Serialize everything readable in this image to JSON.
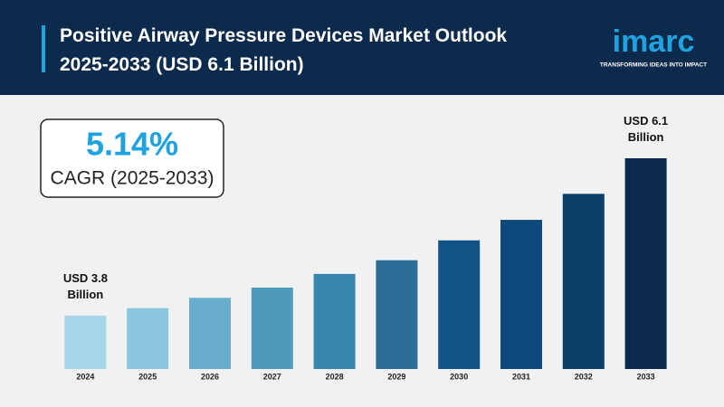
{
  "chart_data": {
    "type": "bar",
    "title": "Positive Airway Pressure Devices Market Outlook 2025-2033 (USD 6.1 Billion)",
    "logo": {
      "name": "imarc",
      "tagline": "TRANSFORMING IDEAS INTO IMPACT"
    },
    "annotation": {
      "value": "5.14%",
      "label": "CAGR (2025-2033)"
    },
    "categories": [
      "2024",
      "2025",
      "2026",
      "2027",
      "2028",
      "2029",
      "2030",
      "2031",
      "2032",
      "2033"
    ],
    "values": [
      3.8,
      3.91,
      4.06,
      4.21,
      4.41,
      4.61,
      4.9,
      5.2,
      5.58,
      6.1
    ],
    "value_labels": [
      "USD 3.8 Billion",
      null,
      null,
      null,
      null,
      null,
      null,
      null,
      null,
      "USD 6.1 Billion"
    ],
    "colors": [
      "#a9d7ea",
      "#8cc5de",
      "#68adcb",
      "#4e9abd",
      "#3886ab",
      "#2d6e98",
      "#0f5387",
      "#0d497a",
      "#0b3e68",
      "#0a2b4c"
    ]
  }
}
